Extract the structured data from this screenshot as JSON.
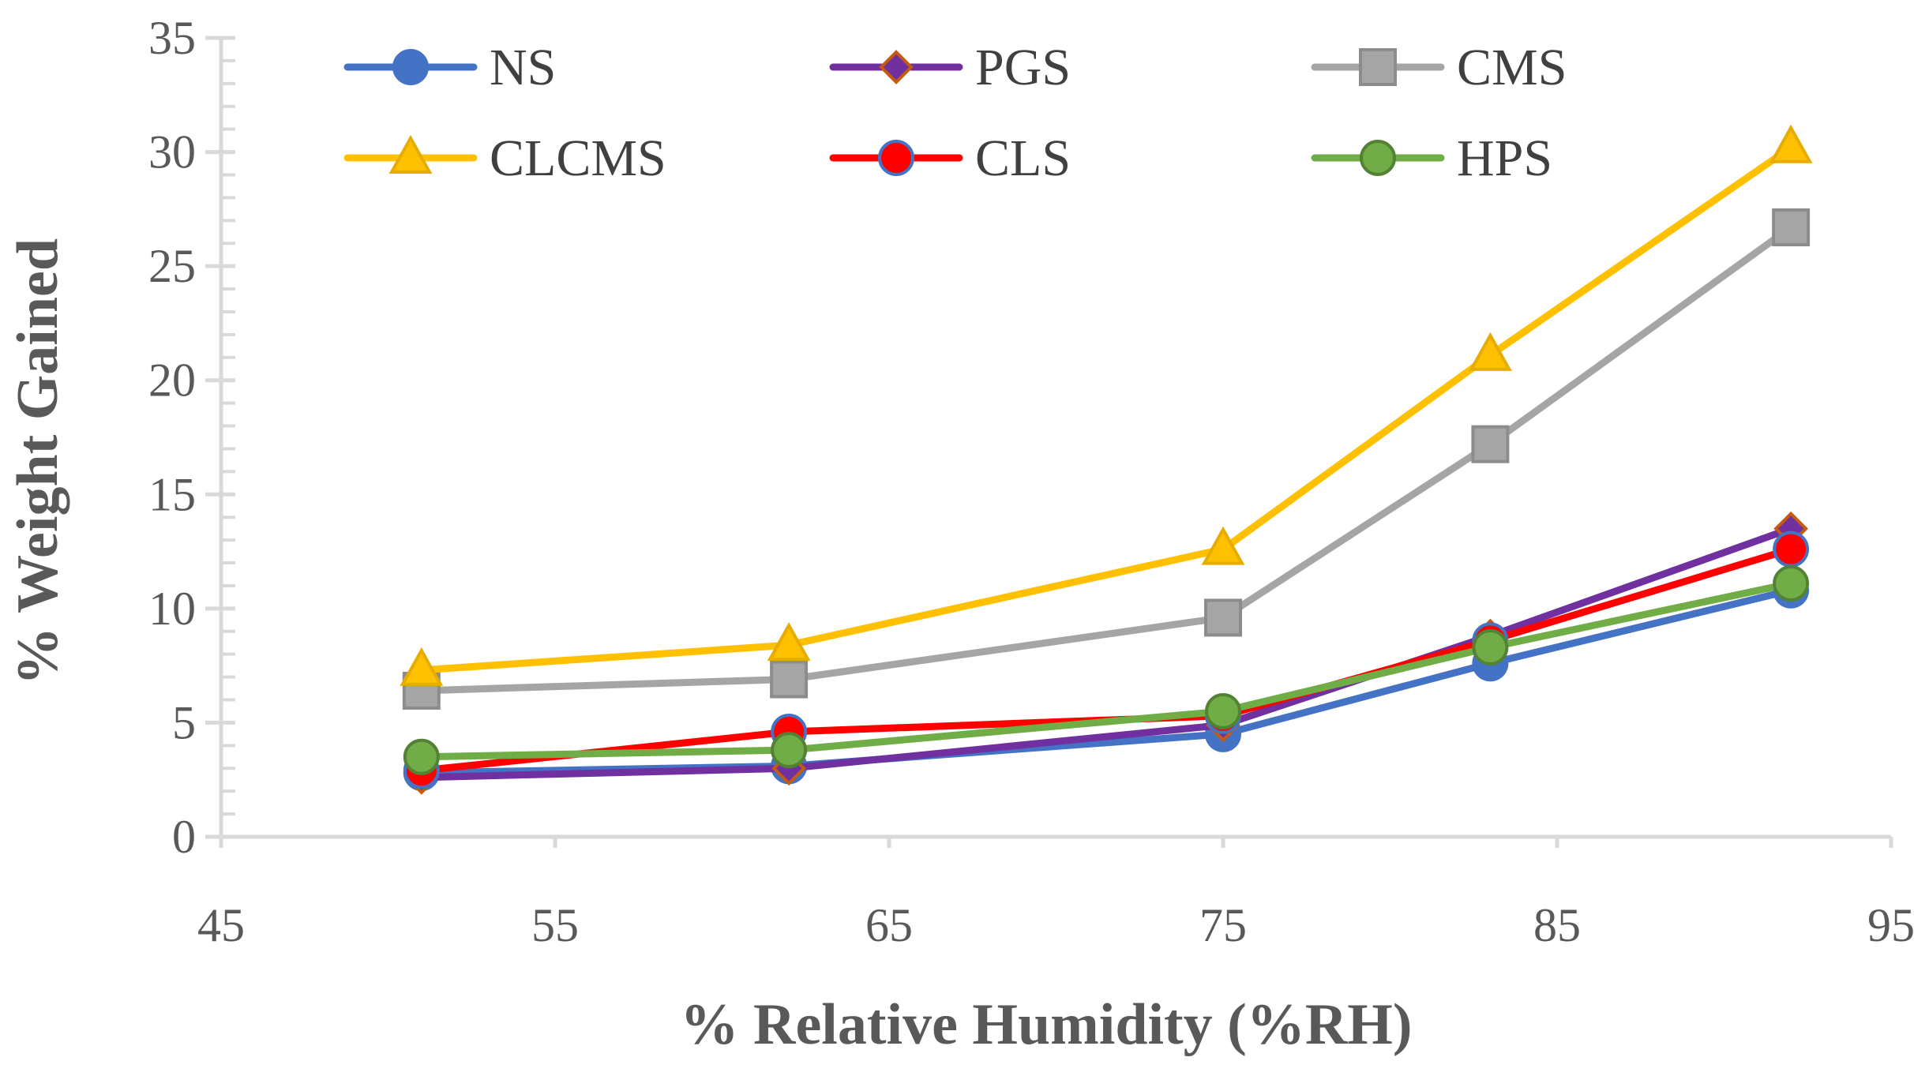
{
  "chart_data": {
    "type": "line",
    "title": "",
    "xlabel": "% Relative Humidity (%RH)",
    "ylabel": "% Weight Gained",
    "xlim": [
      45,
      95
    ],
    "ylim": [
      0,
      35
    ],
    "x_ticks": [
      45,
      55,
      65,
      75,
      85,
      95
    ],
    "y_ticks": [
      0,
      5,
      10,
      15,
      20,
      25,
      30,
      35
    ],
    "y_minor_step": 1,
    "grid": false,
    "legend_position": "top",
    "x": [
      51,
      62,
      75,
      83,
      92
    ],
    "series": [
      {
        "name": "NS",
        "color": "#4472C4",
        "marker": "circle",
        "marker_fill": "#4472C4",
        "marker_stroke": "#4472C4",
        "values": [
          2.8,
          3.1,
          4.5,
          7.6,
          10.8
        ]
      },
      {
        "name": "PGS",
        "color": "#7030A0",
        "marker": "diamond",
        "marker_fill": "#7030A0",
        "marker_stroke": "#C55A11",
        "values": [
          2.6,
          3.0,
          4.9,
          8.8,
          13.5
        ]
      },
      {
        "name": "CMS",
        "color": "#A5A5A5",
        "marker": "square",
        "marker_fill": "#A5A5A5",
        "marker_stroke": "#8C8C8C",
        "values": [
          6.4,
          6.9,
          9.6,
          17.2,
          26.7
        ]
      },
      {
        "name": "CLCMS",
        "color": "#FFC000",
        "marker": "triangle",
        "marker_fill": "#FFC000",
        "marker_stroke": "#E6AC00",
        "values": [
          7.3,
          8.4,
          12.6,
          21.1,
          30.2
        ]
      },
      {
        "name": "CLS",
        "color": "#FF0000",
        "marker": "circle",
        "marker_fill": "#FF0000",
        "marker_stroke": "#4472C4",
        "values": [
          2.9,
          4.6,
          5.3,
          8.6,
          12.6
        ]
      },
      {
        "name": "HPS",
        "color": "#70AD47",
        "marker": "circle",
        "marker_fill": "#70AD47",
        "marker_stroke": "#548235",
        "values": [
          3.5,
          3.8,
          5.5,
          8.3,
          11.1
        ]
      }
    ]
  }
}
